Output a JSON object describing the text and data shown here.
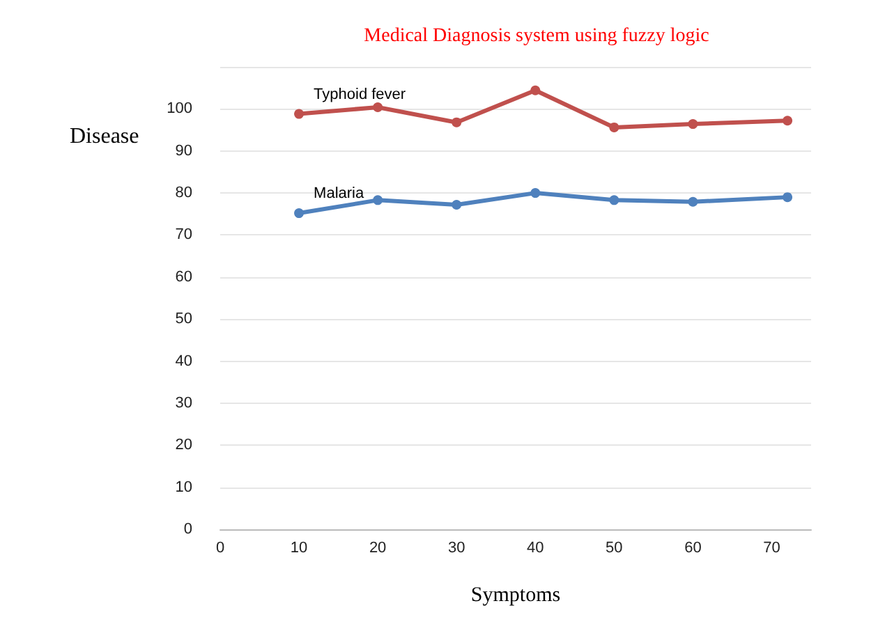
{
  "chart_data": {
    "type": "line",
    "title": "Medical Diagnosis system using fuzzy logic",
    "xlabel": "Symptoms",
    "ylabel": "Disease",
    "x": [
      10,
      20,
      30,
      40,
      50,
      60,
      72
    ],
    "series": [
      {
        "name": "Typhoid fever",
        "color": "#c0504d",
        "values": [
          98.8,
          100.4,
          96.8,
          104.4,
          95.6,
          96.4,
          97.2
        ]
      },
      {
        "name": "Malaria",
        "color": "#4f81bd",
        "values": [
          75.2,
          78.3,
          77.2,
          80,
          78.3,
          77.9,
          79
        ]
      }
    ],
    "xlim": [
      0,
      75
    ],
    "xticks": [
      0,
      10,
      20,
      30,
      40,
      50,
      60,
      70
    ],
    "ylim": [
      0,
      110
    ],
    "yticks": [
      0,
      10,
      20,
      30,
      40,
      50,
      60,
      70,
      80,
      90,
      100,
      {
        "value": 110,
        "label": null
      }
    ],
    "grid": "y",
    "marker": "circle",
    "line_style": "solid",
    "legend": false
  }
}
